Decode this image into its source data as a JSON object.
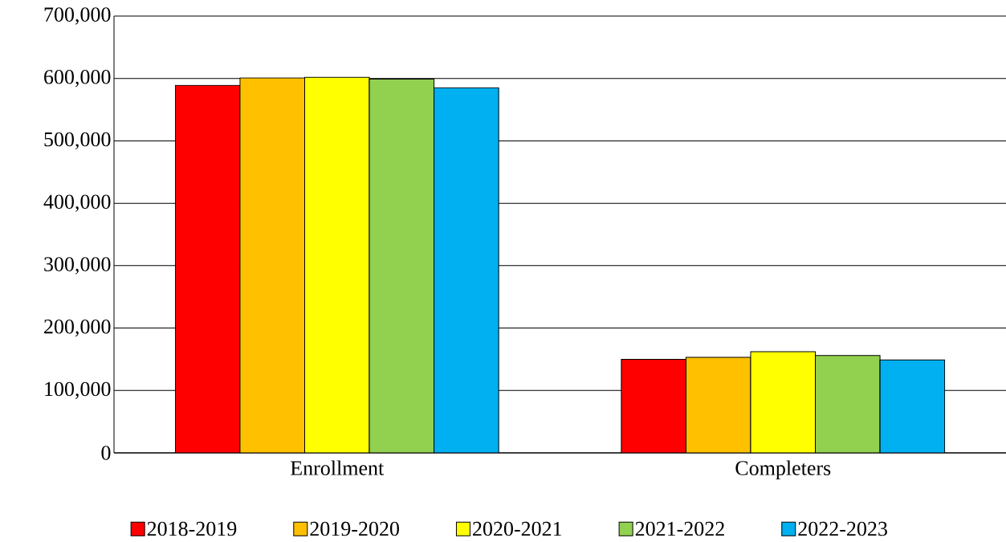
{
  "chart_data": {
    "type": "bar",
    "categories": [
      "Enrollment",
      "Completers"
    ],
    "series": [
      {
        "name": "2018-2019",
        "color": "#ff0000",
        "values": [
          589000,
          150000
        ]
      },
      {
        "name": "2019-2020",
        "color": "#ffc000",
        "values": [
          601000,
          153000
        ]
      },
      {
        "name": "2020-2021",
        "color": "#ffff00",
        "values": [
          602000,
          162000
        ]
      },
      {
        "name": "2021-2022",
        "color": "#92d050",
        "values": [
          599000,
          156000
        ]
      },
      {
        "name": "2022-2023",
        "color": "#00b0f0",
        "values": [
          585000,
          149000
        ]
      }
    ],
    "ylim": [
      0,
      700000
    ],
    "yticks": [
      0,
      {
        "value": 100000,
        "label": "100,000"
      },
      {
        "value": 200000,
        "label": "200,000"
      },
      {
        "value": 300000,
        "label": "300,000"
      },
      {
        "value": 400000,
        "label": "400,000"
      },
      {
        "value": 500000,
        "label": "500,000"
      },
      {
        "value": 600000,
        "label": "600,000"
      },
      {
        "value": 700000,
        "label": "700,000"
      }
    ],
    "grid": "y",
    "legend": "bottom"
  }
}
